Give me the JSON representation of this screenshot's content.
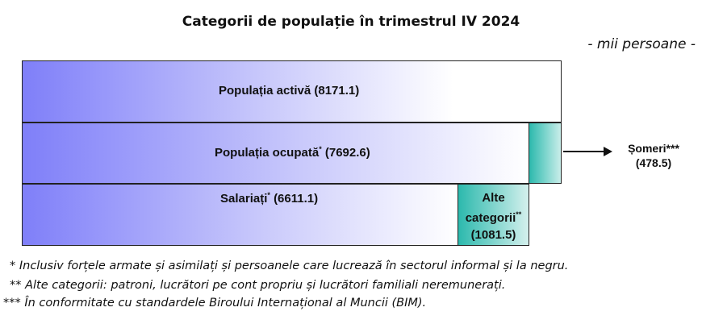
{
  "title": "Categorii de populație în trimestrul IV 2024",
  "unit": "- mii persoane -",
  "boxes": {
    "activa": {
      "label": "Populația activă (8171.1)"
    },
    "ocupata": {
      "label_main": "Populația ocupată",
      "sup": "*",
      "value": "(7692.6)"
    },
    "salariati": {
      "label_main": "Salariați",
      "sup": "*",
      "value": "(6611.1)"
    },
    "alte": {
      "line1": "Alte",
      "line2": "categorii",
      "sup": "**",
      "value": "(1081.5)"
    },
    "someri": {
      "label": "Șomeri***",
      "value": "(478.5)"
    }
  },
  "notes": [
    "*  Inclusiv forțele armate și asimilați și persoanele care lucrează în sectorul informal și la negru.",
    "**  Alte categorii: patroni, lucrători pe cont propriu și lucrători familiali neremunerați.",
    "*** În conformitate cu standardele Biroului Internațional al Muncii (BIM)."
  ],
  "colors": {
    "blue_gradient_start": "#7f7ff9",
    "teal_gradient_start": "#2cb9ad"
  }
}
